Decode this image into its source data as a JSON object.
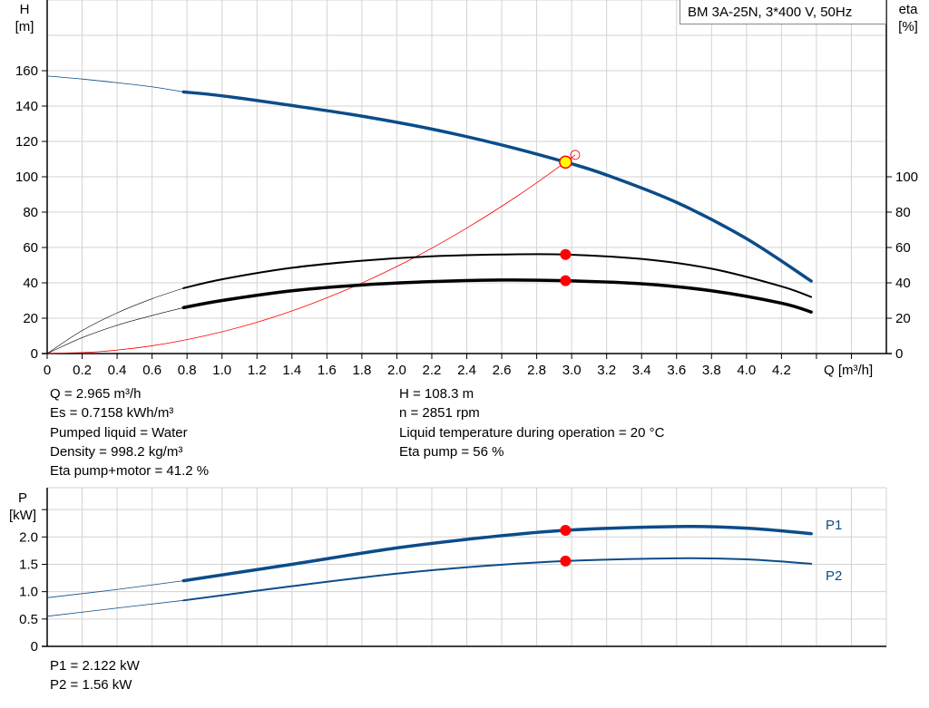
{
  "model_label": "BM 3A-25N, 3*400 V, 50Hz",
  "info_left": [
    "Q = 2.965 m³/h",
    "Es = 0.7158 kWh/m³",
    "Pumped liquid = Water",
    "Density = 998.2 kg/m³",
    "Eta pump+motor = 41.2 %"
  ],
  "info_right": [
    "H = 108.3 m",
    "n = 2851 rpm",
    "Liquid temperature during operation = 20 °C",
    "Eta pump = 56 %"
  ],
  "power_info": [
    "P1 = 2.122 kW",
    "P2 = 1.56 kW"
  ],
  "colors": {
    "head": "#0b4c8a",
    "eta": "#000000",
    "system": "#ff0000",
    "power": "#0b4c8a",
    "grid": "#d3d3d3",
    "duty_marker": "#ff0000",
    "duty_head_marker": "#ffff00"
  },
  "chart_data": [
    {
      "type": "line",
      "xlabel": "Q [m³/h]",
      "ylabel_left": [
        "H",
        "[m]"
      ],
      "ylabel_right": [
        "eta",
        "[%]"
      ],
      "xlim": [
        0,
        4.8
      ],
      "ylim": [
        0,
        200
      ],
      "eta_lim": [
        0,
        100
      ],
      "x_ticks": [
        "0",
        "0.2",
        "0.4",
        "0.6",
        "0.8",
        "1.0",
        "1.2",
        "1.4",
        "1.6",
        "1.8",
        "2.0",
        "2.2",
        "2.4",
        "2.6",
        "2.8",
        "3.0",
        "3.2",
        "3.4",
        "3.6",
        "3.8",
        "4.0",
        "4.2"
      ],
      "y_ticks": [
        "0",
        "20",
        "40",
        "60",
        "80",
        "100",
        "120",
        "140",
        "160"
      ],
      "eta_ticks": [
        "0",
        "20",
        "40",
        "60",
        "80",
        "100"
      ],
      "grid": true,
      "series": [
        {
          "key": "head",
          "x": [
            0,
            0.2,
            0.4,
            0.6,
            0.78,
            1.0,
            1.4,
            1.8,
            2.2,
            2.6,
            2.965,
            3.2,
            3.6,
            4.0,
            4.37
          ],
          "y": [
            157,
            155.3,
            153.2,
            150.9,
            148,
            145.8,
            140.3,
            134.3,
            127,
            118,
            108.3,
            101,
            85.5,
            65,
            41
          ],
          "thin_until": 0.78
        },
        {
          "key": "eta-pump",
          "x": [
            0,
            0.2,
            0.4,
            0.6,
            0.78,
            1.0,
            1.4,
            1.8,
            2.2,
            2.6,
            2.965,
            3.4,
            3.8,
            4.2,
            4.37
          ],
          "y": [
            0,
            13,
            23,
            31,
            37,
            42,
            48.5,
            52.5,
            55,
            56,
            56,
            53.5,
            48,
            38,
            32
          ],
          "thin_until": 0.78
        },
        {
          "key": "eta-pump-motor",
          "x": [
            0,
            0.2,
            0.4,
            0.6,
            0.78,
            1.0,
            1.4,
            1.8,
            2.2,
            2.6,
            2.965,
            3.4,
            3.8,
            4.2,
            4.37
          ],
          "y": [
            0,
            9,
            16,
            21.5,
            26,
            30,
            35.5,
            38.8,
            40.7,
            41.6,
            41.2,
            39.5,
            35.5,
            28.5,
            23.5
          ],
          "thin_until": 0.78
        },
        {
          "key": "system-curve",
          "x": [
            0,
            0.3,
            0.6,
            0.9,
            1.2,
            1.5,
            1.8,
            2.1,
            2.4,
            2.7,
            2.965,
            3.02
          ],
          "y": [
            0,
            1.1,
            4.4,
            10,
            17.7,
            27.7,
            39.9,
            54.3,
            71,
            89.8,
            108.3,
            112.4
          ]
        }
      ],
      "duty_point": {
        "q": 2.965,
        "h": 108.3,
        "eta_pump": 56,
        "eta_pump_motor": 41.2
      }
    },
    {
      "type": "line",
      "ylabel": [
        "P",
        "[kW]"
      ],
      "xlim": [
        0,
        4.8
      ],
      "ylim": [
        0,
        2.9
      ],
      "y_ticks": [
        "0",
        "0.5",
        "1.0",
        "1.5",
        "2.0"
      ],
      "grid": true,
      "series": [
        {
          "name": "P1",
          "x": [
            0,
            0.4,
            0.78,
            1.4,
            2.0,
            2.5,
            2.965,
            3.6,
            4.0,
            4.37
          ],
          "y": [
            0.89,
            1.04,
            1.2,
            1.5,
            1.8,
            1.99,
            2.122,
            2.19,
            2.16,
            2.06
          ],
          "thin_until": 0.78
        },
        {
          "name": "P2",
          "x": [
            0,
            0.4,
            0.78,
            1.4,
            2.0,
            2.5,
            2.965,
            3.6,
            4.0,
            4.37
          ],
          "y": [
            0.55,
            0.7,
            0.84,
            1.1,
            1.33,
            1.47,
            1.56,
            1.61,
            1.59,
            1.51
          ],
          "thin_until": 0.78
        }
      ],
      "duty_point": {
        "q": 2.965,
        "p1": 2.122,
        "p2": 1.56
      }
    }
  ]
}
